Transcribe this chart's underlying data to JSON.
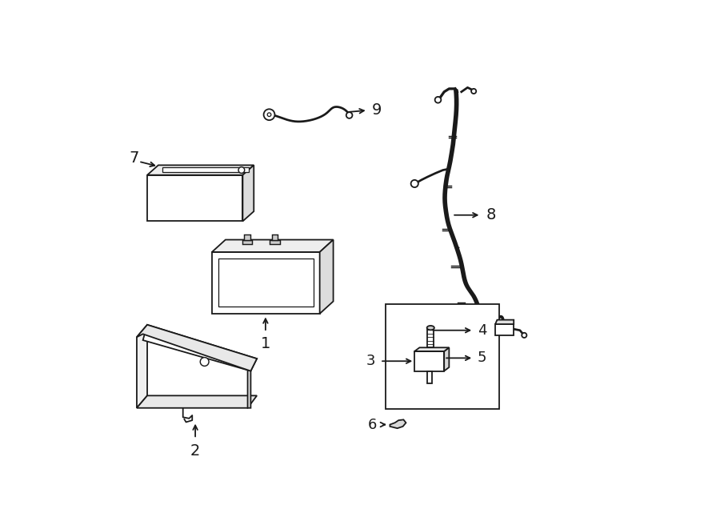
{
  "bg_color": "#ffffff",
  "line_color": "#1a1a1a",
  "lw": 1.3,
  "figsize": [
    9.0,
    6.61
  ],
  "dpi": 100
}
